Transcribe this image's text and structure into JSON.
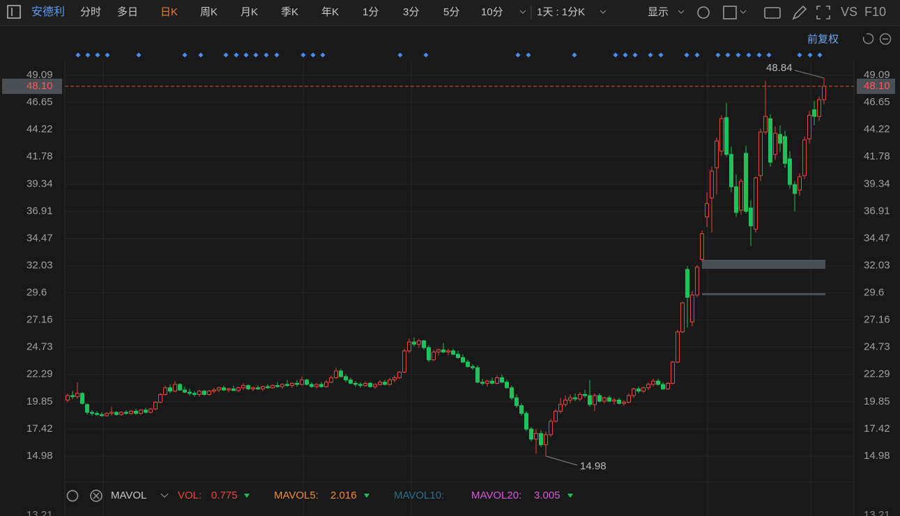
{
  "toolbar": {
    "stock": "安德利",
    "periods": [
      "分时",
      "多日",
      "日K",
      "周K",
      "月K",
      "季K",
      "年K",
      "1分",
      "3分",
      "5分",
      "10分"
    ],
    "active": "日K",
    "interval": "1天 : 1分K",
    "display": "显示",
    "vs": "VS",
    "f10": "F10",
    "adjust": "前复权"
  },
  "chart_data": {
    "type": "candlestick",
    "up_color": "#e8473f",
    "down_color": "#1ec15a",
    "grid": true,
    "ylim": [
      12.67,
      50.34
    ],
    "yticks": [
      49.09,
      46.65,
      44.22,
      41.78,
      39.34,
      36.91,
      34.47,
      32.03,
      29.6,
      27.16,
      24.73,
      22.29,
      19.85,
      17.42,
      14.98
    ],
    "last_price": {
      "value": 48.1,
      "label": "48.10"
    },
    "ohlc": [
      [
        20.0,
        20.6,
        19.8,
        20.4
      ],
      [
        20.4,
        20.8,
        20.1,
        20.3
      ],
      [
        20.3,
        21.6,
        20.1,
        20.6
      ],
      [
        20.6,
        20.7,
        19.6,
        19.7
      ],
      [
        19.6,
        19.7,
        18.7,
        18.9
      ],
      [
        18.9,
        19.1,
        18.6,
        18.8
      ],
      [
        18.8,
        19.0,
        18.6,
        18.7
      ],
      [
        18.7,
        18.9,
        18.5,
        18.6
      ],
      [
        18.6,
        18.9,
        18.5,
        18.8
      ],
      [
        18.8,
        19.4,
        18.6,
        18.9
      ],
      [
        18.9,
        19.0,
        18.6,
        18.7
      ],
      [
        18.7,
        19.0,
        18.6,
        18.9
      ],
      [
        18.9,
        19.1,
        18.7,
        18.8
      ],
      [
        18.8,
        19.1,
        18.7,
        19.0
      ],
      [
        19.0,
        19.2,
        18.7,
        18.8
      ],
      [
        18.8,
        19.2,
        18.7,
        19.1
      ],
      [
        19.1,
        19.3,
        18.8,
        18.9
      ],
      [
        18.9,
        19.3,
        18.8,
        19.2
      ],
      [
        19.2,
        19.9,
        19.1,
        19.8
      ],
      [
        19.8,
        20.6,
        19.7,
        20.5
      ],
      [
        20.5,
        21.3,
        20.4,
        21.1
      ],
      [
        21.1,
        21.4,
        20.6,
        20.8
      ],
      [
        20.8,
        21.7,
        20.7,
        21.4
      ],
      [
        21.4,
        21.5,
        20.8,
        20.9
      ],
      [
        20.9,
        21.2,
        20.6,
        20.7
      ],
      [
        20.7,
        21.0,
        20.4,
        20.6
      ],
      [
        20.6,
        20.8,
        20.3,
        20.5
      ],
      [
        20.5,
        20.9,
        20.3,
        20.8
      ],
      [
        20.8,
        20.9,
        20.4,
        20.5
      ],
      [
        20.5,
        20.9,
        20.4,
        20.8
      ],
      [
        20.8,
        21.1,
        20.6,
        20.9
      ],
      [
        20.9,
        21.2,
        20.7,
        21.1
      ],
      [
        21.1,
        21.3,
        20.8,
        20.9
      ],
      [
        20.9,
        21.1,
        20.7,
        21.0
      ],
      [
        21.0,
        21.3,
        20.8,
        20.85
      ],
      [
        20.85,
        21.2,
        20.7,
        21.1
      ],
      [
        21.1,
        21.5,
        20.9,
        21.3
      ],
      [
        21.3,
        21.4,
        20.9,
        21.0
      ],
      [
        21.0,
        21.2,
        20.8,
        21.1
      ],
      [
        21.1,
        21.3,
        20.9,
        21.0
      ],
      [
        21.0,
        21.3,
        20.8,
        21.2
      ],
      [
        21.2,
        21.4,
        21.0,
        21.1
      ],
      [
        21.1,
        21.4,
        21.0,
        21.3
      ],
      [
        21.3,
        21.6,
        21.1,
        21.2
      ],
      [
        21.2,
        21.5,
        21.0,
        21.4
      ],
      [
        21.4,
        21.8,
        21.2,
        21.3
      ],
      [
        21.3,
        21.6,
        21.1,
        21.5
      ],
      [
        21.5,
        21.8,
        21.2,
        21.4
      ],
      [
        21.4,
        22.1,
        21.3,
        21.8
      ],
      [
        21.8,
        21.9,
        21.3,
        21.4
      ],
      [
        21.4,
        21.6,
        21.1,
        21.2
      ],
      [
        21.2,
        21.5,
        21.0,
        21.4
      ],
      [
        21.4,
        21.6,
        21.1,
        21.2
      ],
      [
        21.2,
        21.8,
        21.1,
        21.6
      ],
      [
        21.6,
        22.2,
        21.5,
        22.0
      ],
      [
        22.0,
        22.9,
        21.9,
        22.6
      ],
      [
        22.6,
        22.8,
        22.0,
        22.1
      ],
      [
        22.1,
        22.3,
        21.6,
        21.8
      ],
      [
        21.8,
        22.0,
        21.4,
        21.5
      ],
      [
        21.5,
        21.7,
        21.2,
        21.4
      ],
      [
        21.4,
        21.6,
        21.1,
        21.3
      ],
      [
        21.3,
        21.7,
        21.2,
        21.5
      ],
      [
        21.5,
        21.6,
        21.1,
        21.2
      ],
      [
        21.2,
        21.5,
        21.0,
        21.4
      ],
      [
        21.4,
        21.8,
        21.3,
        21.6
      ],
      [
        21.6,
        21.8,
        21.3,
        21.4
      ],
      [
        21.4,
        22.0,
        21.3,
        21.8
      ],
      [
        21.8,
        22.2,
        21.6,
        22.0
      ],
      [
        22.0,
        22.6,
        21.9,
        22.5
      ],
      [
        22.5,
        24.6,
        22.4,
        24.4
      ],
      [
        24.4,
        25.5,
        24.2,
        25.2
      ],
      [
        25.2,
        25.6,
        24.8,
        25.0
      ],
      [
        25.0,
        25.5,
        24.7,
        25.3
      ],
      [
        25.3,
        25.4,
        24.5,
        24.7
      ],
      [
        24.7,
        24.9,
        23.4,
        23.6
      ],
      [
        23.6,
        24.5,
        23.5,
        24.3
      ],
      [
        24.3,
        24.6,
        24.0,
        24.5
      ],
      [
        24.5,
        25.1,
        24.2,
        24.3
      ],
      [
        24.3,
        24.6,
        24.0,
        24.4
      ],
      [
        24.4,
        24.6,
        24.0,
        24.1
      ],
      [
        24.1,
        24.4,
        23.7,
        23.8
      ],
      [
        23.8,
        24.1,
        23.3,
        23.4
      ],
      [
        23.4,
        23.6,
        22.9,
        23.0
      ],
      [
        23.0,
        23.2,
        22.7,
        22.9
      ],
      [
        22.9,
        23.1,
        21.5,
        21.6
      ],
      [
        21.6,
        21.9,
        21.3,
        21.5
      ],
      [
        21.5,
        21.8,
        21.2,
        21.7
      ],
      [
        21.7,
        22.0,
        21.4,
        21.5
      ],
      [
        21.5,
        22.2,
        21.4,
        22.0
      ],
      [
        22.0,
        22.3,
        21.5,
        21.6
      ],
      [
        21.6,
        21.8,
        21.0,
        21.1
      ],
      [
        21.1,
        21.3,
        20.0,
        20.2
      ],
      [
        20.2,
        20.5,
        19.3,
        19.5
      ],
      [
        19.5,
        19.7,
        18.6,
        18.8
      ],
      [
        18.8,
        19.0,
        17.2,
        17.4
      ],
      [
        17.4,
        17.6,
        16.3,
        16.5
      ],
      [
        16.5,
        17.4,
        15.2,
        17.0
      ],
      [
        17.0,
        17.3,
        15.8,
        16.0
      ],
      [
        16.0,
        17.2,
        14.98,
        16.9
      ],
      [
        16.9,
        18.3,
        16.7,
        18.1
      ],
      [
        18.1,
        19.2,
        18.0,
        19.0
      ],
      [
        19.0,
        20.2,
        18.8,
        19.6
      ],
      [
        19.6,
        20.4,
        19.4,
        20.0
      ],
      [
        20.0,
        20.5,
        19.7,
        20.2
      ],
      [
        20.2,
        20.6,
        19.9,
        20.1
      ],
      [
        20.1,
        20.7,
        19.9,
        20.5
      ],
      [
        20.5,
        20.9,
        20.2,
        20.4
      ],
      [
        20.4,
        21.8,
        19.4,
        19.6
      ],
      [
        19.6,
        20.6,
        19.0,
        20.4
      ],
      [
        20.4,
        20.6,
        19.8,
        19.9
      ],
      [
        19.9,
        20.3,
        19.7,
        20.2
      ],
      [
        20.2,
        20.4,
        19.8,
        19.9
      ],
      [
        19.9,
        20.2,
        19.6,
        20.0
      ],
      [
        20.0,
        20.2,
        19.6,
        19.7
      ],
      [
        19.7,
        20.0,
        19.5,
        19.8
      ],
      [
        19.8,
        20.6,
        19.7,
        20.4
      ],
      [
        20.4,
        21.1,
        20.2,
        21.0
      ],
      [
        21.0,
        21.2,
        20.6,
        20.8
      ],
      [
        20.8,
        21.2,
        20.6,
        21.1
      ],
      [
        21.1,
        21.6,
        20.9,
        21.4
      ],
      [
        21.4,
        21.9,
        21.2,
        21.7
      ],
      [
        21.7,
        21.9,
        21.3,
        21.4
      ],
      [
        21.4,
        21.6,
        20.9,
        21.0
      ],
      [
        21.0,
        21.6,
        20.9,
        21.5
      ],
      [
        21.5,
        23.5,
        21.4,
        23.4
      ],
      [
        23.4,
        26.3,
        23.3,
        26.1
      ],
      [
        26.1,
        28.8,
        26.0,
        28.7
      ],
      [
        31.7,
        32.0,
        26.5,
        29.2
      ],
      [
        27.0,
        29.8,
        26.6,
        29.4
      ],
      [
        29.4,
        32.1,
        29.2,
        31.9
      ],
      [
        32.6,
        35.2,
        32.4,
        34.9
      ],
      [
        36.4,
        38.6,
        35.5,
        37.6
      ],
      [
        38.1,
        40.9,
        35.0,
        40.5
      ],
      [
        40.8,
        43.5,
        38.4,
        43.2
      ],
      [
        42.3,
        45.5,
        41.9,
        45.2
      ],
      [
        45.3,
        46.6,
        41.8,
        42.0
      ],
      [
        42.0,
        42.7,
        38.6,
        39.1
      ],
      [
        39.1,
        40.2,
        36.4,
        36.8
      ],
      [
        37.0,
        39.8,
        36.6,
        39.6
      ],
      [
        42.1,
        42.8,
        36.7,
        36.9
      ],
      [
        37.2,
        37.9,
        33.8,
        35.6
      ],
      [
        35.3,
        40.0,
        35.0,
        39.9
      ],
      [
        40.1,
        44.3,
        39.6,
        44.0
      ],
      [
        44.0,
        48.6,
        43.8,
        45.4
      ],
      [
        45.2,
        45.6,
        40.9,
        41.3
      ],
      [
        42.0,
        44.5,
        41.5,
        43.9
      ],
      [
        43.8,
        44.6,
        42.2,
        43.0
      ],
      [
        43.6,
        44.1,
        40.8,
        41.2
      ],
      [
        41.6,
        42.3,
        38.9,
        39.3
      ],
      [
        39.3,
        39.6,
        36.9,
        38.5
      ],
      [
        38.8,
        40.3,
        38.3,
        40.0
      ],
      [
        40.1,
        43.6,
        39.8,
        43.3
      ],
      [
        43.4,
        45.9,
        43.0,
        45.5
      ],
      [
        46.0,
        46.8,
        44.6,
        45.4
      ],
      [
        45.4,
        47.2,
        45.0,
        46.9
      ],
      [
        46.9,
        48.84,
        46.5,
        48.1
      ]
    ],
    "high_index": 155,
    "low_index": 98
  },
  "indicator": {
    "name": "MAVOL",
    "items": [
      {
        "name": "VOL:",
        "value": 0.775,
        "color": "#e8473f"
      },
      {
        "name": "MAVOL5:",
        "value": 2.016,
        "color": "#f08c2e"
      },
      {
        "name": "MAVOL10:",
        "color": "#2f6d8c"
      },
      {
        "name": "MAVOL20:",
        "value": 3.005,
        "color": "#d957d9"
      }
    ],
    "axis_top": "13.21"
  }
}
